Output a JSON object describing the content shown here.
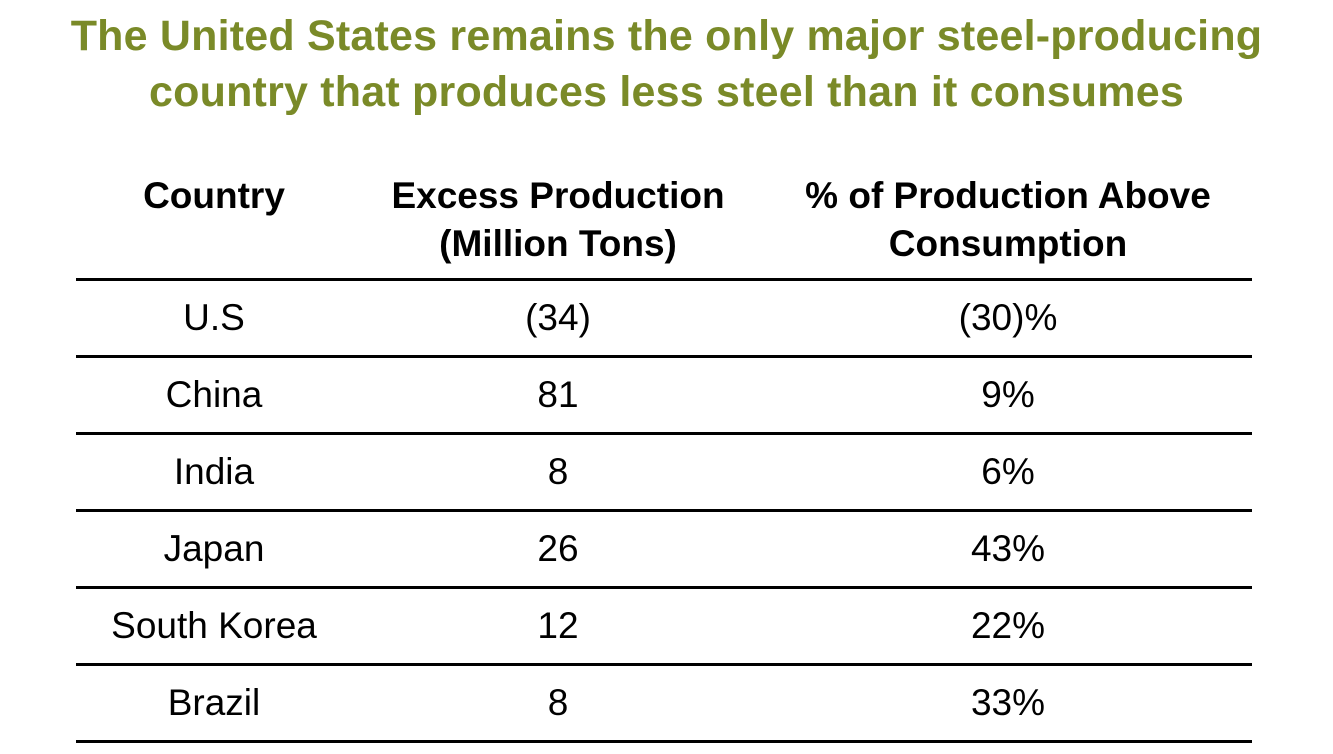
{
  "title": {
    "line1": "The United States remains the only major steel-producing",
    "line2": "country that produces less steel than it consumes"
  },
  "colors": {
    "title": "#7a8a28",
    "text": "#000000",
    "rule": "#000000"
  },
  "table": {
    "headers": [
      {
        "line1": "Country",
        "line2": ""
      },
      {
        "line1": "Excess Production",
        "line2": "(Million Tons)"
      },
      {
        "line1": "% of Production Above",
        "line2": "Consumption"
      }
    ],
    "rows": [
      [
        "U.S",
        "(34)",
        "(30)%"
      ],
      [
        "China",
        "81",
        "9%"
      ],
      [
        "India",
        "8",
        "6%"
      ],
      [
        "Japan",
        "26",
        "43%"
      ],
      [
        "South Korea",
        "12",
        "22%"
      ],
      [
        "Brazil",
        "8",
        "33%"
      ]
    ]
  }
}
